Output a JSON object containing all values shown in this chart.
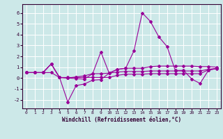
{
  "xlabel": "Windchill (Refroidissement éolien,°C)",
  "bg_color": "#cce8e8",
  "grid_color": "#ffffff",
  "line_color": "#990099",
  "x_values": [
    0,
    1,
    2,
    3,
    4,
    5,
    6,
    7,
    8,
    9,
    10,
    11,
    12,
    13,
    14,
    15,
    16,
    17,
    18,
    19,
    20,
    21,
    22,
    23
  ],
  "s1": [
    0.5,
    0.5,
    0.5,
    1.3,
    0.05,
    -2.2,
    -0.7,
    -0.55,
    -0.2,
    -0.15,
    0.45,
    0.8,
    0.9,
    2.5,
    6.0,
    5.2,
    3.8,
    2.9,
    0.7,
    0.7,
    -0.1,
    -0.5,
    0.7,
    0.9
  ],
  "s2": [
    0.5,
    0.5,
    0.5,
    1.3,
    0.05,
    0.0,
    -0.05,
    -0.1,
    0.4,
    2.4,
    0.45,
    0.8,
    0.9,
    0.9,
    0.9,
    1.05,
    1.1,
    1.1,
    1.1,
    1.1,
    1.1,
    1.05,
    1.05,
    1.0
  ],
  "s3": [
    0.5,
    0.5,
    0.5,
    1.3,
    0.05,
    0.0,
    0.1,
    0.2,
    0.4,
    0.4,
    0.45,
    0.55,
    0.6,
    0.6,
    0.6,
    0.65,
    0.65,
    0.65,
    0.65,
    0.65,
    0.65,
    0.65,
    0.8,
    0.9
  ],
  "s4": [
    0.5,
    0.5,
    0.5,
    0.5,
    0.05,
    0.05,
    0.05,
    0.05,
    0.05,
    0.05,
    0.05,
    0.25,
    0.35,
    0.35,
    0.35,
    0.4,
    0.4,
    0.4,
    0.4,
    0.4,
    0.4,
    0.4,
    0.75,
    0.85
  ],
  "ylim": [
    -2.8,
    6.8
  ],
  "yticks": [
    -2,
    -1,
    0,
    1,
    2,
    3,
    4,
    5,
    6
  ],
  "xticks": [
    0,
    1,
    2,
    3,
    4,
    5,
    6,
    7,
    8,
    9,
    10,
    11,
    12,
    13,
    14,
    15,
    16,
    17,
    18,
    19,
    20,
    21,
    22,
    23
  ]
}
